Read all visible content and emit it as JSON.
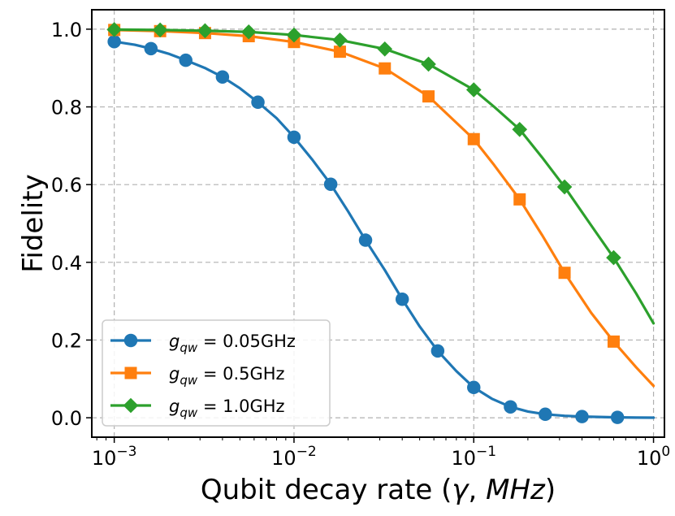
{
  "chart_data": {
    "type": "line",
    "title": "",
    "xlabel_prefix": "Qubit decay rate (",
    "xlabel_symbol": "γ",
    "xlabel_sep": ", ",
    "xlabel_unit": "MHz",
    "xlabel_suffix": ")",
    "ylabel": "Fidelity",
    "xscale": "log",
    "xlim": [
      0.00075,
      1.15
    ],
    "ylim": [
      -0.05,
      1.05
    ],
    "grid": true,
    "legend_position": "lower-left",
    "x_ticks": [
      {
        "base": "10",
        "exp": "−3"
      },
      {
        "base": "10",
        "exp": "−2"
      },
      {
        "base": "10",
        "exp": "−1"
      },
      {
        "base": "10",
        "exp": "0"
      }
    ],
    "y_ticks": [
      "0.0",
      "0.2",
      "0.4",
      "0.6",
      "0.8",
      "1.0"
    ],
    "series": [
      {
        "name": "g_qw = 0.05GHz",
        "legend_var": "g",
        "legend_sub": "qw",
        "legend_value": " = 0.05GHz",
        "color": "#1f77b4",
        "marker": "circle",
        "x": [
          0.001,
          0.0016,
          0.0025,
          0.004,
          0.0063,
          0.01,
          0.016,
          0.025,
          0.04,
          0.063,
          0.1,
          0.16,
          0.25,
          0.4,
          0.63
        ],
        "y": [
          0.968,
          0.95,
          0.92,
          0.877,
          0.812,
          0.722,
          0.601,
          0.457,
          0.305,
          0.172,
          0.078,
          0.028,
          0.009,
          0.003,
          0.001
        ],
        "curve_x": [
          0.001,
          0.0013,
          0.0016,
          0.002,
          0.0025,
          0.0032,
          0.004,
          0.005,
          0.0063,
          0.008,
          0.01,
          0.0126,
          0.016,
          0.02,
          0.025,
          0.032,
          0.04,
          0.05,
          0.063,
          0.08,
          0.1,
          0.126,
          0.16,
          0.2,
          0.25,
          0.32,
          0.4,
          0.5,
          0.63,
          0.8,
          1.0
        ],
        "curve_y": [
          0.968,
          0.96,
          0.95,
          0.937,
          0.92,
          0.9,
          0.877,
          0.848,
          0.812,
          0.771,
          0.722,
          0.665,
          0.601,
          0.531,
          0.457,
          0.38,
          0.305,
          0.235,
          0.172,
          0.12,
          0.078,
          0.049,
          0.028,
          0.016,
          0.009,
          0.005,
          0.003,
          0.002,
          0.001,
          0.0005,
          0.0002
        ]
      },
      {
        "name": "g_qw = 0.5GHz",
        "legend_var": "g",
        "legend_sub": "qw",
        "legend_value": " = 0.5GHz",
        "color": "#ff7f0e",
        "marker": "square",
        "x": [
          0.001,
          0.0018,
          0.0032,
          0.0056,
          0.01,
          0.018,
          0.032,
          0.056,
          0.1,
          0.18,
          0.32,
          0.6
        ],
        "y": [
          0.998,
          0.995,
          0.99,
          0.982,
          0.967,
          0.942,
          0.899,
          0.827,
          0.717,
          0.562,
          0.373,
          0.196
        ],
        "curve_x": [
          0.001,
          0.0018,
          0.0032,
          0.0056,
          0.01,
          0.018,
          0.032,
          0.056,
          0.1,
          0.13,
          0.18,
          0.24,
          0.32,
          0.45,
          0.6,
          0.8,
          1.0
        ],
        "curve_y": [
          0.998,
          0.995,
          0.99,
          0.982,
          0.967,
          0.942,
          0.899,
          0.827,
          0.717,
          0.65,
          0.562,
          0.47,
          0.373,
          0.27,
          0.196,
          0.13,
          0.082
        ]
      },
      {
        "name": "g_qw = 1.0GHz",
        "legend_var": "g",
        "legend_sub": "qw",
        "legend_value": " = 1.0GHz",
        "color": "#2ca02c",
        "marker": "diamond",
        "x": [
          0.001,
          0.0018,
          0.0032,
          0.0056,
          0.01,
          0.018,
          0.032,
          0.056,
          0.1,
          0.18,
          0.32,
          0.6
        ],
        "y": [
          0.999,
          0.998,
          0.996,
          0.993,
          0.985,
          0.972,
          0.949,
          0.91,
          0.844,
          0.742,
          0.594,
          0.412
        ],
        "curve_x": [
          0.001,
          0.0018,
          0.0032,
          0.0056,
          0.01,
          0.018,
          0.032,
          0.056,
          0.1,
          0.13,
          0.18,
          0.24,
          0.32,
          0.45,
          0.6,
          0.8,
          1.0
        ],
        "curve_y": [
          0.999,
          0.998,
          0.996,
          0.993,
          0.985,
          0.972,
          0.949,
          0.91,
          0.844,
          0.8,
          0.742,
          0.67,
          0.594,
          0.495,
          0.412,
          0.32,
          0.243
        ]
      }
    ]
  }
}
